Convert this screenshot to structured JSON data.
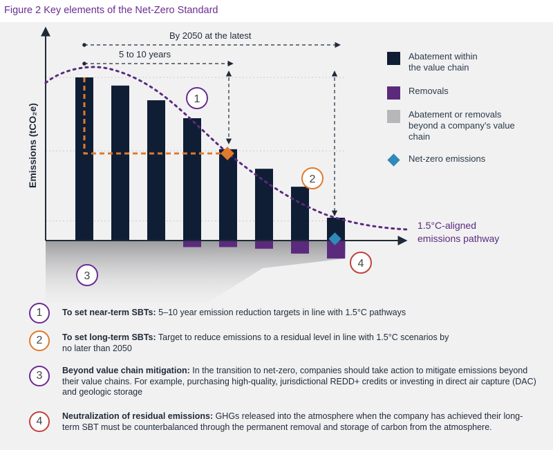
{
  "figure_title": "Figure 2 Key elements of the Net-Zero Standard",
  "chart": {
    "ylabel": "Emissions (tCO₂e)",
    "annotation_long": "By 2050 at the latest",
    "annotation_short": "5 to 10 years",
    "pathway_label_line1": "1.5°C-aligned",
    "pathway_label_line2": "emissions pathway",
    "step_markers": [
      "1",
      "2",
      "3",
      "4"
    ]
  },
  "chart_data": {
    "type": "bar",
    "categories": [
      "",
      "",
      "",
      "",
      "",
      "",
      "",
      ""
    ],
    "series": [
      {
        "name": "Abatement within the value chain",
        "values": [
          100,
          95,
          86,
          75,
          56,
          44,
          33,
          14
        ]
      },
      {
        "name": "Removals",
        "values": [
          0,
          0,
          0,
          -4,
          -4,
          -5,
          -8,
          -11
        ]
      }
    ],
    "colors": {
      "abatement": "#0f1e34",
      "removals": "#5b2a7d",
      "beyond_value_chain": "#b7b7b9",
      "net_zero": "#2f89b9",
      "pathway": "#5b2a7d",
      "near_term_target": "#e07a2c"
    }
  },
  "legend": [
    {
      "label": "Abatement within the value chain",
      "color": "#0f1e34",
      "shape": "square"
    },
    {
      "label": "Removals",
      "color": "#5b2a7d",
      "shape": "square"
    },
    {
      "label": "Abatement or removals beyond a company’s value chain",
      "color": "#b7b7b9",
      "shape": "square"
    },
    {
      "label": "Net-zero emissions",
      "color": "#2f89b9",
      "shape": "diamond"
    }
  ],
  "notes": [
    {
      "number": "1",
      "title": "To set near-term SBTs:",
      "text": " 5–10 year emission reduction targets in line with 1.5°C pathways"
    },
    {
      "number": "2",
      "title": "To set long-term SBTs:",
      "text": " Target to reduce emissions to a residual level in line with 1.5°C scenarios by no later than 2050"
    },
    {
      "number": "3",
      "title": "Beyond value chain mitigation:",
      "text": " In the transition to net-zero, companies should take action to mitigate emissions beyond their value chains. For example, purchasing high-quality, jurisdictional REDD+ credits or investing in direct air capture (DAC) and geologic storage"
    },
    {
      "number": "4",
      "title": "Neutralization of residual emissions:",
      "text": " GHGs released into the atmosphere when the company has achieved their long-term SBT must be counterbalanced through the permanent removal and storage of carbon from the atmosphere."
    }
  ]
}
